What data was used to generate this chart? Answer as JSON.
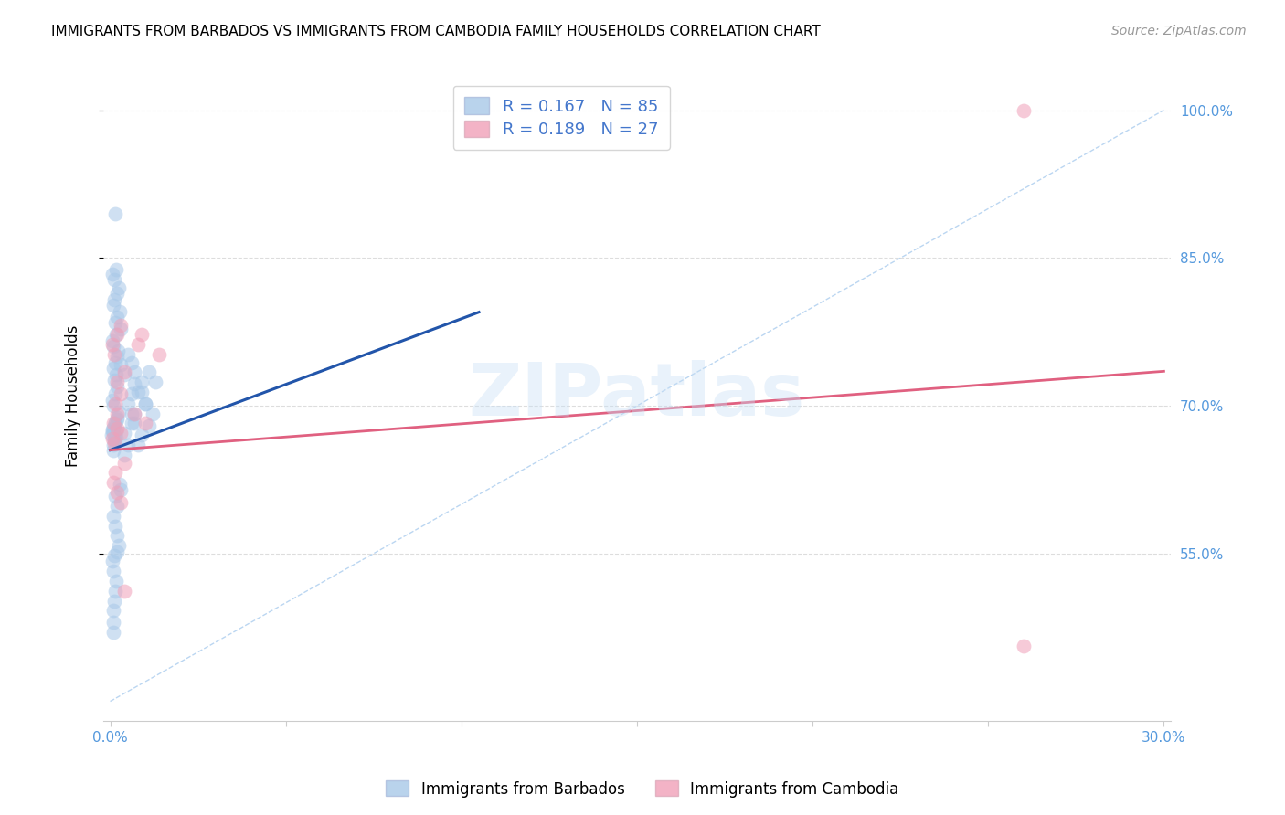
{
  "title": "IMMIGRANTS FROM BARBADOS VS IMMIGRANTS FROM CAMBODIA FAMILY HOUSEHOLDS CORRELATION CHART",
  "source": "Source: ZipAtlas.com",
  "ylabel": "Family Households",
  "legend_label1": "Immigrants from Barbados",
  "legend_label2": "Immigrants from Cambodia",
  "R1": 0.167,
  "N1": 85,
  "R2": 0.189,
  "N2": 27,
  "color_blue": "#a8c8e8",
  "color_pink": "#f0a0b8",
  "color_blue_line": "#2255aa",
  "color_pink_line": "#e06080",
  "color_axis_labels": "#5599dd",
  "color_grid": "#dddddd",
  "watermark": "ZIPatlas",
  "xlim_min": -0.002,
  "xlim_max": 0.302,
  "ylim_min": 0.38,
  "ylim_max": 1.04,
  "ytick_vals": [
    0.55,
    0.7,
    0.85,
    1.0
  ],
  "ytick_labels": [
    "55.0%",
    "70.0%",
    "85.0%",
    "100.0%"
  ],
  "xtick_vals": [
    0.0,
    0.05,
    0.1,
    0.15,
    0.2,
    0.25,
    0.3
  ],
  "xtick_show": [
    "0.0%",
    "",
    "",
    "",
    "",
    "",
    "30.0%"
  ],
  "blue_line_x": [
    0.0,
    0.105
  ],
  "blue_line_y": [
    0.655,
    0.795
  ],
  "pink_line_x": [
    0.0,
    0.3
  ],
  "pink_line_y": [
    0.655,
    0.735
  ],
  "diag_line_x": [
    0.0,
    0.3
  ],
  "diag_line_y": [
    0.4,
    1.0
  ],
  "barbados_x": [
    0.0005,
    0.001,
    0.0015,
    0.001,
    0.002,
    0.0008,
    0.0012,
    0.0018,
    0.0006,
    0.0014,
    0.0009,
    0.0016,
    0.0011,
    0.0007,
    0.0013,
    0.002,
    0.0025,
    0.0008,
    0.0006,
    0.0015,
    0.002,
    0.0012,
    0.0017,
    0.0009,
    0.0014,
    0.002,
    0.0022,
    0.001,
    0.0007,
    0.0018,
    0.003,
    0.0014,
    0.002,
    0.0026,
    0.0008,
    0.0012,
    0.002,
    0.0024,
    0.0011,
    0.0007,
    0.0018,
    0.0028,
    0.003,
    0.0013,
    0.002,
    0.0009,
    0.0015,
    0.002,
    0.0025,
    0.0012,
    0.004,
    0.005,
    0.004,
    0.006,
    0.007,
    0.005,
    0.006,
    0.007,
    0.004,
    0.003,
    0.008,
    0.009,
    0.007,
    0.006,
    0.01,
    0.008,
    0.009,
    0.007,
    0.006,
    0.005,
    0.011,
    0.012,
    0.01,
    0.009,
    0.013,
    0.011,
    0.001,
    0.001,
    0.0008,
    0.0012,
    0.0015,
    0.0018,
    0.001,
    0.0006,
    0.002
  ],
  "barbados_y": [
    0.67,
    0.678,
    0.895,
    0.672,
    0.686,
    0.66,
    0.665,
    0.674,
    0.676,
    0.682,
    0.655,
    0.668,
    0.666,
    0.674,
    0.682,
    0.688,
    0.694,
    0.7,
    0.706,
    0.712,
    0.72,
    0.726,
    0.732,
    0.738,
    0.744,
    0.75,
    0.756,
    0.76,
    0.766,
    0.772,
    0.778,
    0.784,
    0.79,
    0.796,
    0.802,
    0.808,
    0.814,
    0.82,
    0.828,
    0.834,
    0.838,
    0.62,
    0.615,
    0.608,
    0.598,
    0.588,
    0.578,
    0.568,
    0.558,
    0.548,
    0.65,
    0.66,
    0.672,
    0.682,
    0.692,
    0.702,
    0.712,
    0.722,
    0.732,
    0.742,
    0.66,
    0.67,
    0.682,
    0.692,
    0.702,
    0.714,
    0.724,
    0.734,
    0.744,
    0.752,
    0.68,
    0.692,
    0.702,
    0.714,
    0.724,
    0.734,
    0.47,
    0.48,
    0.492,
    0.502,
    0.512,
    0.522,
    0.532,
    0.542,
    0.552
  ],
  "cambodia_x": [
    0.0008,
    0.002,
    0.0015,
    0.003,
    0.002,
    0.004,
    0.0012,
    0.0007,
    0.003,
    0.002,
    0.004,
    0.0015,
    0.001,
    0.002,
    0.003,
    0.004,
    0.0012,
    0.0007,
    0.002,
    0.003,
    0.008,
    0.009,
    0.26,
    0.26,
    0.014,
    0.01,
    0.007
  ],
  "cambodia_y": [
    0.682,
    0.692,
    0.702,
    0.712,
    0.724,
    0.734,
    0.662,
    0.667,
    0.672,
    0.677,
    0.642,
    0.632,
    0.622,
    0.612,
    0.602,
    0.512,
    0.752,
    0.762,
    0.772,
    0.782,
    0.762,
    0.772,
    1.0,
    0.456,
    0.752,
    0.682,
    0.692
  ]
}
